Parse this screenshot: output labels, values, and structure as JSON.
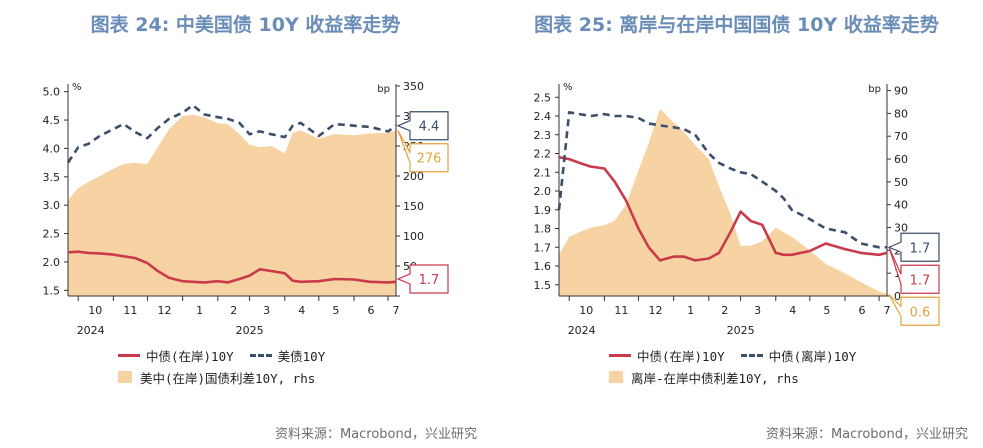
{
  "colors": {
    "china": "#c93a4b",
    "other": "#3b4f6b",
    "spread": "#f7d3a3",
    "title": "#6a8db8",
    "spread_label": "#e3a33c"
  },
  "source_text": "资料来源：Macrobond，兴业研究",
  "chart_data": [
    {
      "type": "line",
      "title": "图表 24: 中美国债 10Y 收益率走势",
      "x_tick_labels": [
        "10",
        "11",
        "12",
        "1",
        "2",
        "3",
        "4",
        "5",
        "6",
        "7"
      ],
      "year_labels": [
        "2024",
        "2025"
      ],
      "x_range": [
        "2024-09-22",
        "2025-07-08"
      ],
      "left_axis": {
        "unit": "%",
        "min": 1.4,
        "max": 5.1,
        "ticks": [
          1.5,
          2.0,
          2.5,
          3.0,
          3.5,
          4.0,
          4.5,
          5.0
        ]
      },
      "right_axis": {
        "unit": "bp",
        "min": 0,
        "max": 350,
        "ticks": [
          0,
          50,
          100,
          150,
          200,
          250,
          300,
          350
        ],
        "tick_labels": [
          "",
          "50",
          "100",
          "150",
          "200",
          "250",
          "300",
          "350"
        ]
      },
      "x": [
        "2024-09-22",
        "2024-10-01",
        "2024-10-10",
        "2024-10-20",
        "2024-11-01",
        "2024-11-10",
        "2024-11-20",
        "2024-12-01",
        "2024-12-10",
        "2024-12-20",
        "2025-01-01",
        "2025-01-10",
        "2025-01-20",
        "2025-02-01",
        "2025-02-10",
        "2025-02-20",
        "2025-03-01",
        "2025-03-10",
        "2025-03-20",
        "2025-04-01",
        "2025-04-08",
        "2025-04-15",
        "2025-05-01",
        "2025-05-15",
        "2025-06-01",
        "2025-06-15",
        "2025-07-01",
        "2025-07-08"
      ],
      "series": [
        {
          "name": "中债(在岸)10Y",
          "axis": "left",
          "style": "solid",
          "color_key": "china",
          "values": [
            2.17,
            2.18,
            2.16,
            2.15,
            2.13,
            2.1,
            2.07,
            1.98,
            1.84,
            1.72,
            1.66,
            1.65,
            1.64,
            1.66,
            1.64,
            1.7,
            1.76,
            1.87,
            1.84,
            1.8,
            1.67,
            1.65,
            1.66,
            1.7,
            1.69,
            1.65,
            1.64,
            1.65
          ]
        },
        {
          "name": "美债10Y",
          "axis": "left",
          "style": "dashed",
          "color_key": "other",
          "values": [
            3.75,
            4.02,
            4.08,
            4.22,
            4.34,
            4.43,
            4.29,
            4.18,
            4.36,
            4.52,
            4.63,
            4.76,
            4.6,
            4.55,
            4.52,
            4.45,
            4.25,
            4.3,
            4.25,
            4.2,
            4.4,
            4.45,
            4.22,
            4.43,
            4.4,
            4.38,
            4.3,
            4.4
          ]
        },
        {
          "name": "美中(在岸)国债利差10Y, rhs",
          "axis": "right",
          "style": "area",
          "color_key": "spread",
          "values": [
            160,
            180,
            190,
            200,
            212,
            220,
            222,
            220,
            248,
            278,
            300,
            302,
            298,
            288,
            286,
            270,
            252,
            248,
            250,
            238,
            272,
            276,
            262,
            270,
            268,
            271,
            272,
            276
          ]
        }
      ],
      "callouts": [
        {
          "text": "4.4",
          "color_key": "other",
          "level": 4.4,
          "axis": "left"
        },
        {
          "text": "276",
          "color_key": "spread_label",
          "level": 276,
          "axis": "right"
        },
        {
          "text": "1.7",
          "color_key": "china",
          "level": 1.7,
          "axis": "left"
        }
      ],
      "legend": [
        "中债(在岸)10Y",
        "美债10Y",
        "美中(在岸)国债利差10Y, rhs"
      ]
    },
    {
      "type": "line",
      "title": "图表 25: 离岸与在岸中国国债 10Y 收益率走势",
      "x_tick_labels": [
        "10",
        "11",
        "12",
        "1",
        "2",
        "3",
        "4",
        "5",
        "6",
        "7"
      ],
      "year_labels": [
        "2024",
        "2025"
      ],
      "x_range": [
        "2024-09-22",
        "2025-07-08"
      ],
      "left_axis": {
        "unit": "%",
        "min": 1.44,
        "max": 2.56,
        "ticks": [
          1.5,
          1.6,
          1.7,
          1.8,
          1.9,
          2.0,
          2.1,
          2.2,
          2.3,
          2.4,
          2.5
        ]
      },
      "right_axis": {
        "unit": "bp",
        "min": 0,
        "max": 92,
        "ticks": [
          0,
          10,
          20,
          30,
          40,
          50,
          60,
          70,
          80,
          90
        ],
        "tick_labels": [
          "0",
          "10",
          "20",
          "30",
          "40",
          "50",
          "60",
          "70",
          "80",
          "90"
        ]
      },
      "x": [
        "2024-09-22",
        "2024-10-01",
        "2024-10-10",
        "2024-10-20",
        "2024-11-01",
        "2024-11-10",
        "2024-11-20",
        "2024-12-01",
        "2024-12-10",
        "2024-12-20",
        "2025-01-01",
        "2025-01-10",
        "2025-01-20",
        "2025-02-01",
        "2025-02-10",
        "2025-02-20",
        "2025-03-01",
        "2025-03-10",
        "2025-03-20",
        "2025-04-01",
        "2025-04-08",
        "2025-04-15",
        "2025-05-01",
        "2025-05-15",
        "2025-06-01",
        "2025-06-15",
        "2025-07-01",
        "2025-07-08"
      ],
      "series": [
        {
          "name": "中债(在岸)10Y",
          "axis": "left",
          "style": "solid",
          "color_key": "china",
          "values": [
            2.18,
            2.17,
            2.15,
            2.13,
            2.12,
            2.05,
            1.95,
            1.8,
            1.7,
            1.63,
            1.65,
            1.65,
            1.63,
            1.64,
            1.67,
            1.78,
            1.89,
            1.84,
            1.82,
            1.67,
            1.66,
            1.66,
            1.68,
            1.72,
            1.69,
            1.67,
            1.66,
            1.67
          ]
        },
        {
          "name": "中债(离岸)10Y",
          "axis": "left",
          "style": "dashed",
          "color_key": "other",
          "values": [
            1.9,
            2.42,
            2.41,
            2.4,
            2.41,
            2.4,
            2.4,
            2.39,
            2.36,
            2.35,
            2.34,
            2.33,
            2.3,
            2.2,
            2.15,
            2.12,
            2.1,
            2.09,
            2.05,
            2.0,
            1.96,
            1.9,
            1.85,
            1.8,
            1.78,
            1.72,
            1.7,
            1.7
          ]
        },
        {
          "name": "离岸-在岸中债利差10Y, rhs",
          "axis": "right",
          "style": "area",
          "color_key": "spread",
          "values": [
            18,
            26,
            28,
            30,
            31,
            33,
            40,
            55,
            67,
            82,
            76,
            72,
            66,
            60,
            48,
            36,
            22,
            22,
            24,
            30,
            28,
            26,
            20,
            14,
            10,
            6,
            2,
            1
          ]
        }
      ],
      "callouts": [
        {
          "text": "1.7",
          "color_key": "other",
          "level": 1.7,
          "axis": "left"
        },
        {
          "text": "1.7",
          "color_key": "china",
          "level": 1.7,
          "axis": "left"
        },
        {
          "text": "0.6",
          "color_key": "spread_label",
          "level": 0.6,
          "axis": "right"
        }
      ],
      "legend": [
        "中债(在岸)10Y",
        "中债(离岸)10Y",
        "离岸-在岸中债利差10Y, rhs"
      ]
    }
  ]
}
